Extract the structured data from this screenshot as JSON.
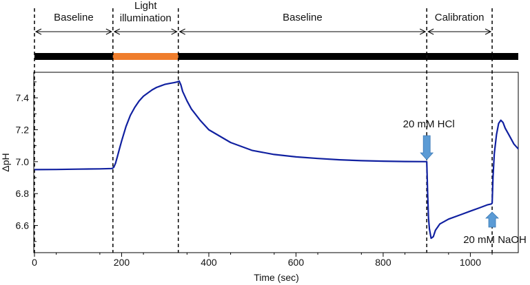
{
  "chart_data": {
    "type": "line",
    "title": "",
    "xlabel": "Time (sec)",
    "ylabel": "ΔpH",
    "xlim": [
      0,
      1110
    ],
    "ylim": [
      6.43,
      7.56
    ],
    "x_ticks": [
      0,
      200,
      400,
      600,
      800,
      1000
    ],
    "y_ticks": [
      6.6,
      6.8,
      7.0,
      7.2,
      7.4
    ],
    "x_tick_labels": [
      "0",
      "200",
      "400",
      "600",
      "800",
      "1000"
    ],
    "y_tick_labels": [
      "6.6",
      "6.8",
      "7.0",
      "7.2",
      "7.4"
    ],
    "grid": false,
    "series": [
      {
        "name": "pH",
        "color": "#1020a0",
        "x": [
          0,
          50,
          100,
          150,
          178,
          182,
          186,
          190,
          195,
          200,
          210,
          220,
          230,
          240,
          250,
          260,
          270,
          280,
          290,
          300,
          310,
          320,
          328,
          332,
          336,
          340,
          350,
          360,
          380,
          400,
          450,
          500,
          550,
          600,
          650,
          700,
          750,
          800,
          850,
          900,
          902,
          904,
          906,
          910,
          915,
          920,
          930,
          950,
          980,
          1000,
          1020,
          1040,
          1048,
          1050,
          1052,
          1055,
          1060,
          1065,
          1070,
          1075,
          1080,
          1090,
          1100,
          1110
        ],
        "y": [
          6.95,
          6.951,
          6.953,
          6.955,
          6.957,
          6.965,
          6.99,
          7.03,
          7.08,
          7.13,
          7.22,
          7.29,
          7.34,
          7.38,
          7.41,
          7.43,
          7.45,
          7.465,
          7.475,
          7.485,
          7.49,
          7.495,
          7.5,
          7.505,
          7.48,
          7.44,
          7.38,
          7.33,
          7.26,
          7.2,
          7.12,
          7.07,
          7.045,
          7.03,
          7.02,
          7.012,
          7.006,
          7.003,
          7.001,
          7.0,
          6.8,
          6.65,
          6.58,
          6.52,
          6.53,
          6.57,
          6.61,
          6.64,
          6.67,
          6.69,
          6.71,
          6.73,
          6.735,
          6.74,
          6.9,
          7.05,
          7.17,
          7.24,
          7.26,
          7.245,
          7.21,
          7.16,
          7.11,
          7.08
        ]
      }
    ],
    "phases": [
      {
        "label": "Baseline",
        "start": 0,
        "end": 180,
        "bar_color": "#000000"
      },
      {
        "label": "Light\nillumination",
        "start": 180,
        "end": 330,
        "bar_color": "#ef7d2c"
      },
      {
        "label": "Baseline",
        "start": 330,
        "end": 900,
        "bar_color": "#000000"
      },
      {
        "label": "Calibration",
        "start": 900,
        "end": 1050,
        "bar_color": "#000000"
      },
      {
        "label": "",
        "start": 1050,
        "end": 1110,
        "bar_color": "#000000"
      }
    ],
    "phase_boundaries": [
      0,
      180,
      330,
      900,
      1050
    ],
    "annotations": [
      {
        "text": "20 mM HCl",
        "x": 900,
        "arrow": "down",
        "color": "#5b9bd5"
      },
      {
        "text": "20 mM NaOH",
        "x": 1050,
        "arrow": "up",
        "color": "#5b9bd5"
      }
    ]
  }
}
